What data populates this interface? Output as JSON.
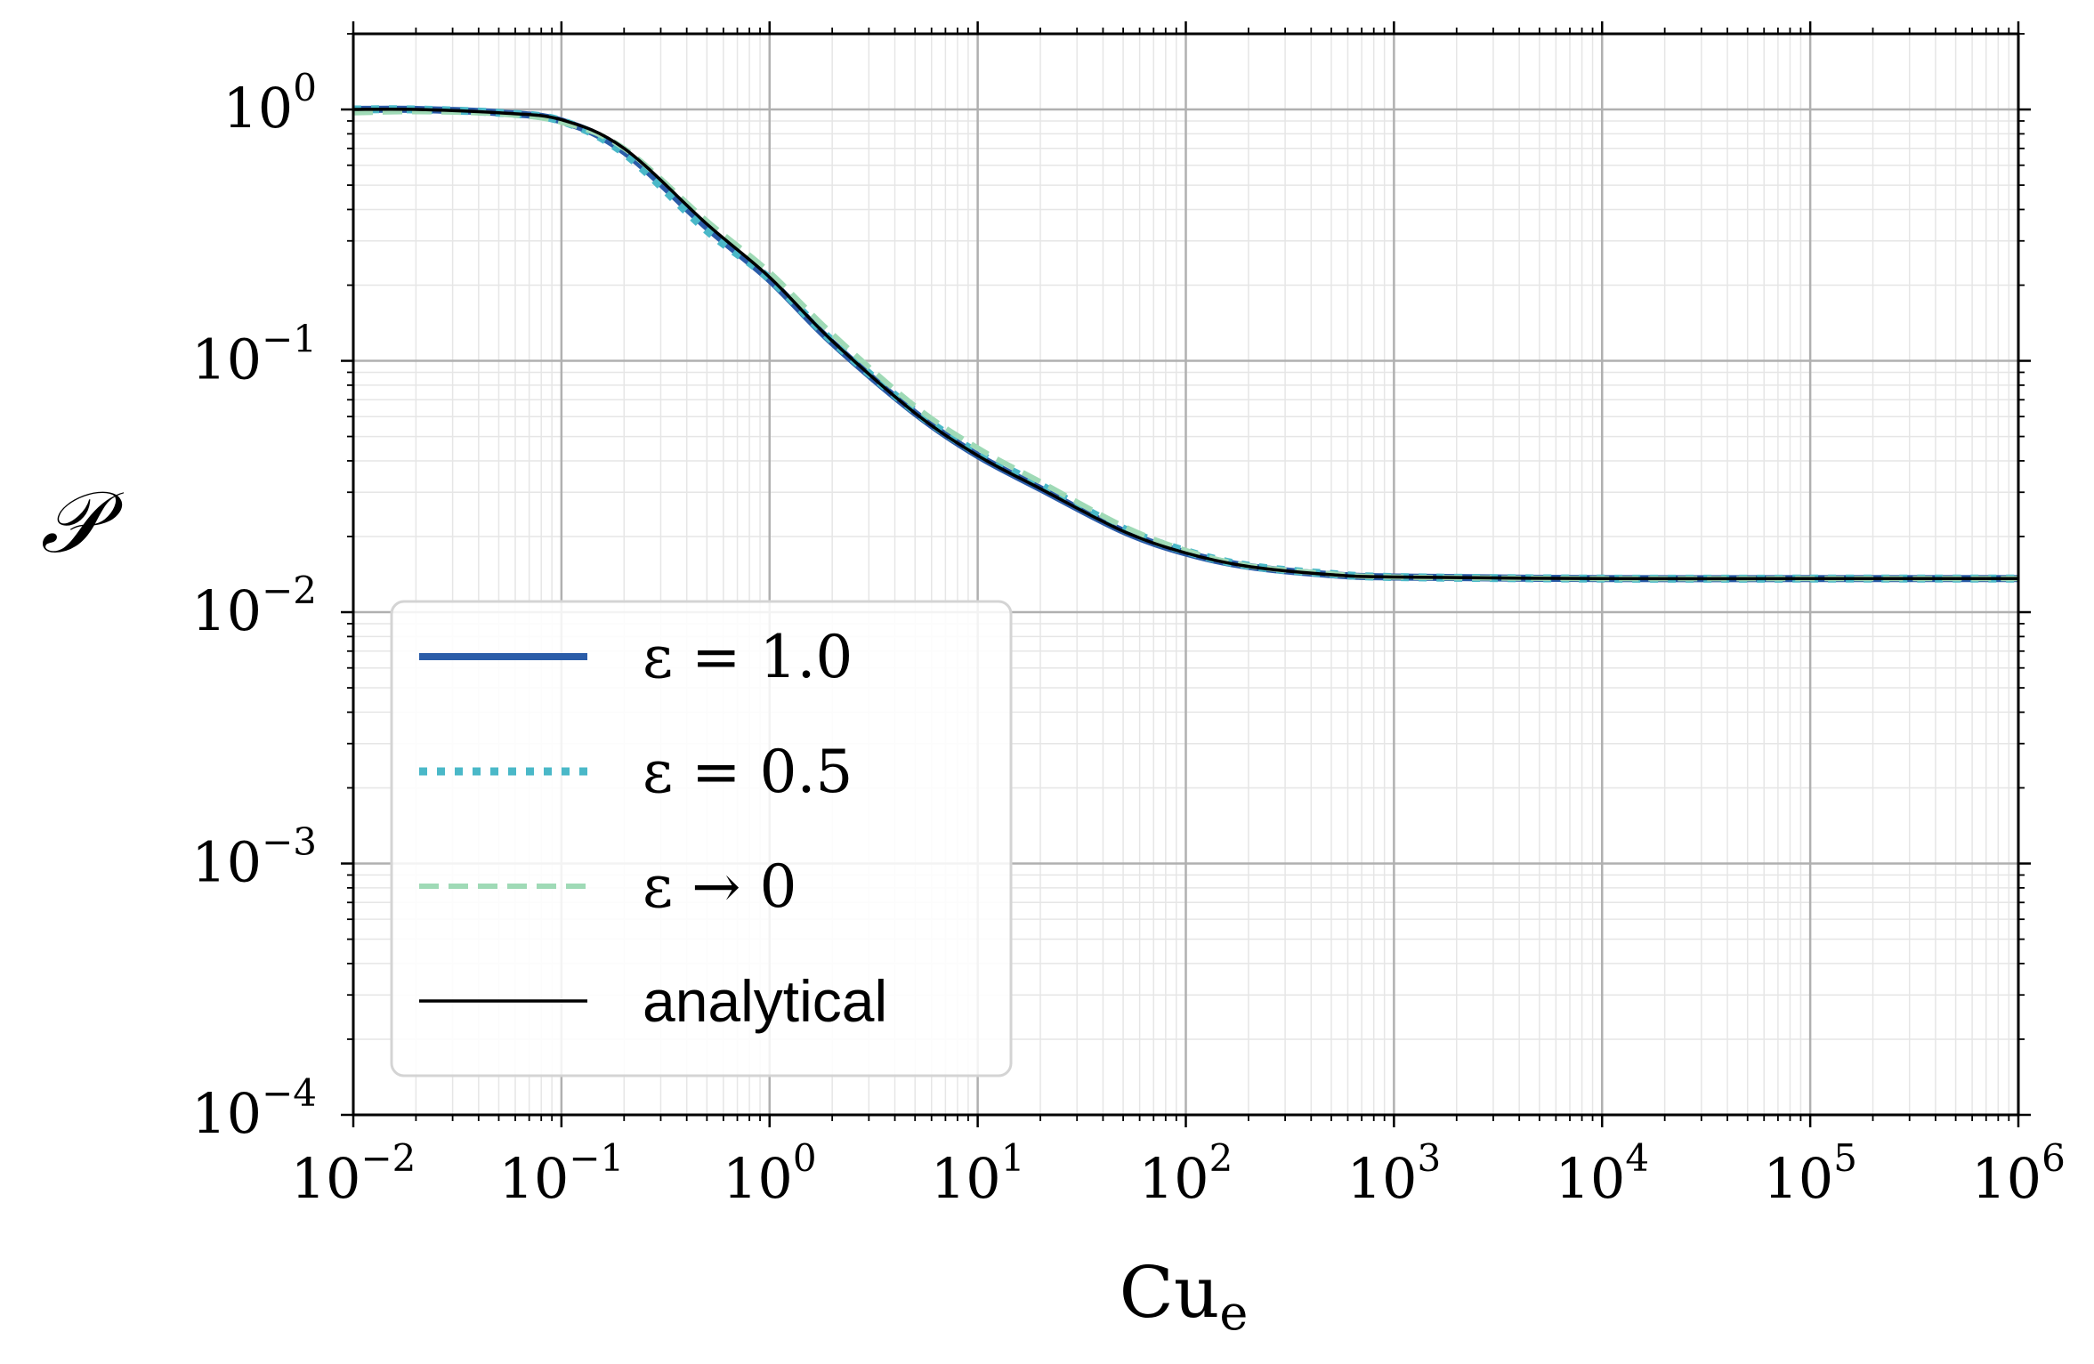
{
  "chart_data": {
    "type": "line",
    "title": "",
    "xlabel": {
      "base": "Cu",
      "sub": "e"
    },
    "ylabel": "𝒫",
    "xscale": "log",
    "yscale": "log",
    "xlim": [
      0.01,
      1000000
    ],
    "ylim": [
      0.0001,
      2
    ],
    "grid": {
      "major": true,
      "minor": true
    },
    "legend_position": "lower-left",
    "x_ticks": [
      {
        "value": 0.01,
        "base": "10",
        "exp": "−2"
      },
      {
        "value": 0.1,
        "base": "10",
        "exp": "−1"
      },
      {
        "value": 1,
        "base": "10",
        "exp": "0"
      },
      {
        "value": 10,
        "base": "10",
        "exp": "1"
      },
      {
        "value": 100,
        "base": "10",
        "exp": "2"
      },
      {
        "value": 1000,
        "base": "10",
        "exp": "3"
      },
      {
        "value": 10000,
        "base": "10",
        "exp": "4"
      },
      {
        "value": 100000,
        "base": "10",
        "exp": "5"
      },
      {
        "value": 1000000,
        "base": "10",
        "exp": "6"
      }
    ],
    "y_ticks": [
      {
        "value": 1,
        "base": "10",
        "exp": "0"
      },
      {
        "value": 0.1,
        "base": "10",
        "exp": "−1"
      },
      {
        "value": 0.01,
        "base": "10",
        "exp": "−2"
      },
      {
        "value": 0.001,
        "base": "10",
        "exp": "−3"
      },
      {
        "value": 0.0001,
        "base": "10",
        "exp": "−4"
      }
    ],
    "x": [
      0.01,
      0.02,
      0.05,
      0.1,
      0.2,
      0.5,
      1,
      2,
      5,
      10,
      20,
      50,
      100,
      200,
      500,
      1000,
      10000,
      100000,
      1000000
    ],
    "series": [
      {
        "name": "ε = 1.0",
        "color": "#2a5ca8",
        "style": "solid-thick",
        "values": [
          1.0,
          1.0,
          0.97,
          0.9,
          0.68,
          0.34,
          0.21,
          0.118,
          0.062,
          0.042,
          0.031,
          0.021,
          0.0172,
          0.0152,
          0.0141,
          0.0138,
          0.0136,
          0.0136,
          0.0136
        ]
      },
      {
        "name": "ε = 0.5",
        "color": "#4ab8c8",
        "style": "dotted-thick",
        "values": [
          1.0,
          1.0,
          0.97,
          0.9,
          0.67,
          0.33,
          0.212,
          0.12,
          0.063,
          0.043,
          0.032,
          0.0215,
          0.0175,
          0.0153,
          0.0142,
          0.0138,
          0.0136,
          0.0136,
          0.0136
        ]
      },
      {
        "name": "ε → 0",
        "color": "#9fdab6",
        "style": "dashed",
        "values": [
          0.97,
          0.98,
          0.96,
          0.89,
          0.7,
          0.36,
          0.225,
          0.128,
          0.066,
          0.045,
          0.033,
          0.022,
          0.0176,
          0.0153,
          0.0142,
          0.0138,
          0.0136,
          0.0136,
          0.0136
        ]
      },
      {
        "name": "analytical",
        "color": "#000000",
        "style": "solid-thin",
        "values": [
          1.0,
          1.0,
          0.97,
          0.91,
          0.7,
          0.35,
          0.215,
          0.12,
          0.062,
          0.042,
          0.031,
          0.021,
          0.0172,
          0.0152,
          0.0141,
          0.0138,
          0.0136,
          0.0136,
          0.0136
        ]
      }
    ],
    "legend": [
      {
        "label": "ε = 1.0",
        "font": "math"
      },
      {
        "label": "ε = 0.5",
        "font": "math"
      },
      {
        "label": "ε → 0",
        "font": "math"
      },
      {
        "label": "analytical",
        "font": "sans"
      }
    ]
  }
}
